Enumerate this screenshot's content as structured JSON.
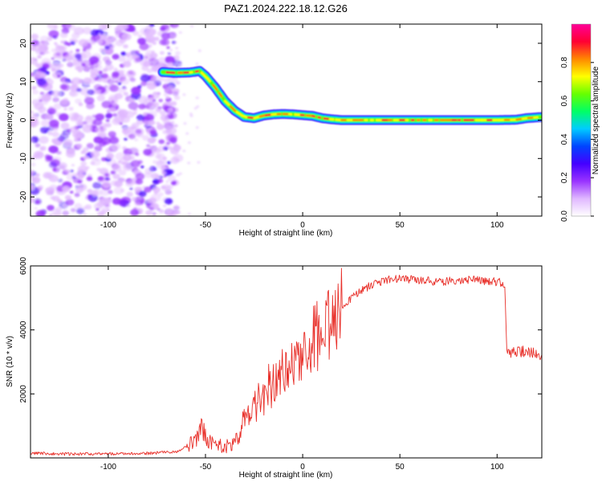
{
  "title": "PAZ1.2024.222.18.12.G26",
  "colormap": [
    "#ffffff",
    "#e0b8ff",
    "#9933ff",
    "#4400ff",
    "#0044ff",
    "#00ccff",
    "#00ff66",
    "#66ff00",
    "#ffff00",
    "#ff8800",
    "#ff0033",
    "#ff0099"
  ],
  "trace_color": "#e8302a",
  "chart_data": [
    {
      "type": "heatmap",
      "title": "PAZ1.2024.222.18.12.G26",
      "xlabel": "Height of straight line (km)",
      "ylabel": "Frequency (Hz)",
      "xlim": [
        -140,
        123
      ],
      "ylim": [
        -25,
        25
      ],
      "xticks": [
        -100,
        -50,
        0,
        50,
        100
      ],
      "yticks": [
        -20,
        -10,
        0,
        10,
        20
      ],
      "grid": false,
      "colorbar": {
        "label": "Normalized spectral amplitude",
        "range": [
          0,
          1
        ],
        "ticks": [
          0.0,
          0.2,
          0.4,
          0.6,
          0.8
        ]
      },
      "ridge": {
        "x": [
          -72,
          -65,
          -58,
          -53,
          -50,
          -45,
          -40,
          -35,
          -30,
          -25,
          -20,
          -15,
          -10,
          -5,
          0,
          5,
          10,
          15,
          20,
          30,
          40,
          60,
          80,
          100,
          110,
          115,
          123
        ],
        "frequency": [
          12.5,
          12.3,
          12.4,
          12.8,
          11.5,
          8.5,
          5.0,
          2.5,
          0.8,
          0.5,
          1.2,
          1.5,
          1.6,
          1.5,
          1.3,
          1.1,
          0.5,
          0.2,
          0.0,
          0.0,
          0.0,
          0.0,
          0.0,
          0.0,
          0.1,
          0.5,
          0.8
        ]
      },
      "noise_region_x": [
        -140,
        -70
      ]
    },
    {
      "type": "line",
      "xlabel": "Height of straight line (km)",
      "ylabel": "SNR (10 * v/v)",
      "xlim": [
        -140,
        123
      ],
      "ylim": [
        0,
        6000
      ],
      "xticks": [
        -100,
        -50,
        0,
        50,
        100
      ],
      "yticks": [
        2000,
        4000,
        6000
      ],
      "grid": false,
      "series": [
        {
          "x": [
            -140,
            -120,
            -100,
            -80,
            -65,
            -60,
            -55,
            -52,
            -48,
            -45,
            -40,
            -37,
            -33,
            -30,
            -25,
            -20,
            -15,
            -10,
            -5,
            0,
            5,
            10,
            15,
            20,
            25,
            30,
            35,
            40,
            45,
            50,
            60,
            70,
            80,
            90,
            100,
            104,
            105,
            110,
            115,
            120,
            123
          ],
          "values": [
            150,
            120,
            130,
            140,
            200,
            350,
            550,
            900,
            500,
            350,
            400,
            300,
            650,
            1200,
            1600,
            2000,
            2400,
            2700,
            3000,
            3300,
            3600,
            3900,
            4300,
            4600,
            5000,
            5200,
            5400,
            5500,
            5600,
            5600,
            5550,
            5500,
            5550,
            5550,
            5500,
            5450,
            3300,
            3300,
            3350,
            3250,
            3200
          ]
        }
      ]
    }
  ]
}
